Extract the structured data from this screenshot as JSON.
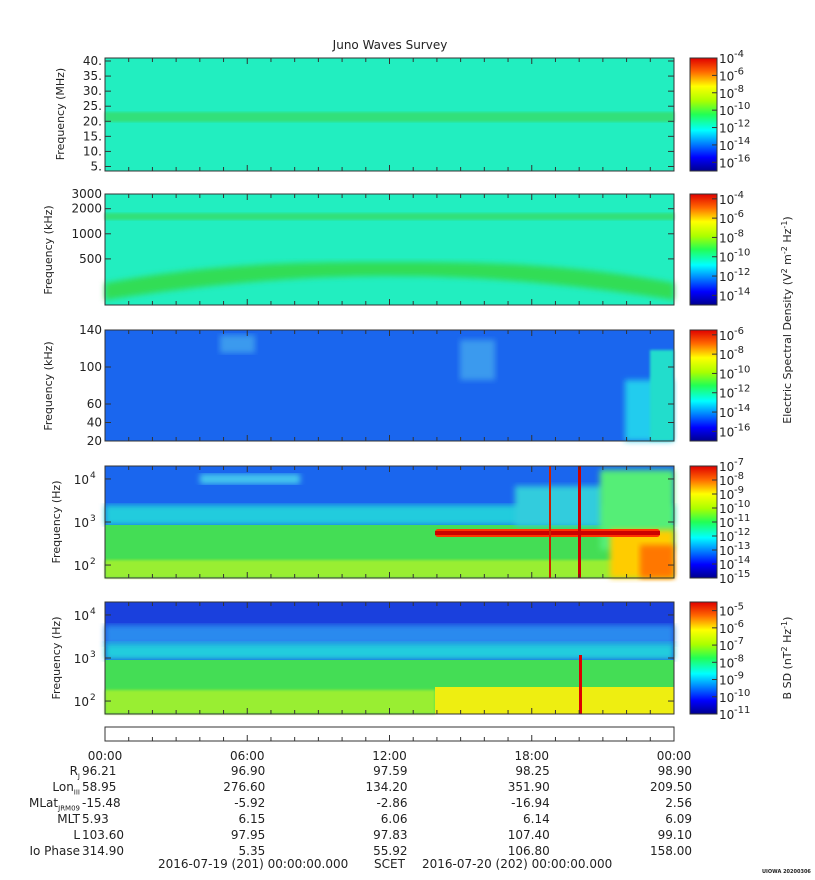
{
  "title": "Juno Waves Survey",
  "chart_data": [
    {
      "type": "heatmap",
      "panel": "HFR high",
      "ylabel": "Frequency (MHz)",
      "yscale": "linear",
      "ylim": [
        3.5,
        41
      ],
      "yticks": [
        40,
        35,
        30,
        25,
        20,
        15,
        10,
        5
      ],
      "ytick_labels": [
        "40.",
        "35.",
        "30.",
        "25.",
        "20.",
        "15.",
        "10.",
        "5."
      ],
      "colorbar": {
        "exponents": [
          -4,
          -6,
          -8,
          -10,
          -12,
          -14,
          -16
        ],
        "range": [
          -17,
          -4
        ]
      },
      "features": [
        {
          "name": "band",
          "y": 21,
          "level": -11
        },
        {
          "name": "background",
          "level": -13
        }
      ]
    },
    {
      "type": "heatmap",
      "panel": "HFR low",
      "ylabel": "Frequency (kHz)",
      "yscale": "log",
      "ylim": [
        140,
        3000
      ],
      "yticks": [
        3000,
        2000,
        1000,
        500
      ],
      "ytick_labels": [
        "3000",
        "2000",
        "1000",
        "500"
      ],
      "colorbar": {
        "exponents": [
          -4,
          -6,
          -8,
          -10,
          -12,
          -14
        ],
        "range": [
          -15,
          -3.5
        ]
      },
      "features": [
        {
          "name": "upper band",
          "y": 1600,
          "level": -11
        },
        {
          "name": "lower arc",
          "y_edges": 250,
          "y_center": 430,
          "level": -10.5
        },
        {
          "name": "background",
          "level": -12.5
        }
      ]
    },
    {
      "type": "heatmap",
      "panel": "LFR high",
      "ylabel": "Frequency (kHz)",
      "yscale": "linear",
      "ylim": [
        20,
        140
      ],
      "yticks": [
        140,
        100,
        60,
        40,
        20
      ],
      "ytick_labels": [
        "140",
        "100",
        "60",
        "40",
        "20"
      ],
      "colorbar": {
        "exponents": [
          -6,
          -8,
          -10,
          -12,
          -14,
          -16
        ],
        "range": [
          -17,
          -5.5
        ]
      },
      "features": [
        {
          "name": "background",
          "level": -14
        },
        {
          "name": "late emission",
          "x_start": "22:00",
          "level": -12
        }
      ]
    },
    {
      "type": "heatmap",
      "panel": "LFR E-field",
      "ylabel": "Frequency (Hz)",
      "yscale": "log",
      "ylim": [
        50,
        20000
      ],
      "yticks": [
        10000,
        1000,
        100
      ],
      "ytick_exponents": [
        "4",
        "3",
        "2"
      ],
      "colorbar": {
        "exponents": [
          -7,
          -8,
          -9,
          -10,
          -11,
          -12,
          -13,
          -14,
          -15
        ],
        "range": [
          -15,
          -7
        ]
      },
      "features": [
        {
          "name": "hiss",
          "y": 8000,
          "level": -13
        },
        {
          "name": "tone 600 Hz",
          "x_start": "14:00",
          "x_end": "23:30",
          "y": 600,
          "level": -7.5
        },
        {
          "name": "spike",
          "x": "20:00",
          "level": -8
        },
        {
          "name": "low-frequency rise",
          "x_start": "22:00",
          "level": -9
        }
      ]
    },
    {
      "type": "heatmap",
      "panel": "Magnetic",
      "ylabel": "Frequency (Hz)",
      "yscale": "log",
      "ylim": [
        50,
        20000
      ],
      "yticks": [
        10000,
        1000,
        100
      ],
      "ytick_exponents": [
        "4",
        "3",
        "2"
      ],
      "colorbar": {
        "exponents": [
          -5,
          -6,
          -7,
          -8,
          -9,
          -10,
          -11
        ],
        "range": [
          -11,
          -4.5
        ]
      },
      "features": [
        {
          "name": "background high",
          "y": 10000,
          "level": -11
        },
        {
          "name": "low band",
          "y": 100,
          "level": -8
        },
        {
          "name": "step",
          "x_start": "14:00",
          "level": -6.5
        },
        {
          "name": "spike",
          "x": "20:00",
          "level": -4.8
        }
      ]
    }
  ],
  "colorbar_labels": {
    "electric_main": "Electric Spectral Density (V",
    "electric_2": "2",
    "electric_m": " m",
    "electric_m2": "-2",
    "electric_hz": " Hz",
    "electric_hz1": "-1",
    "electric_close": ")",
    "magnetic_main": "B SD (nT",
    "magnetic_2": "2",
    "magnetic_hz": " Hz",
    "magnetic_hz1": "-1",
    "magnetic_close": ")"
  },
  "xaxis": {
    "ticks": [
      "00:00",
      "06:00",
      "12:00",
      "18:00",
      "00:00"
    ],
    "ticks_hours": [
      0,
      6,
      12,
      18,
      24
    ]
  },
  "ephemeris": {
    "rows": [
      {
        "label": "R",
        "sub": "J",
        "values": [
          "96.21",
          "96.90",
          "97.59",
          "98.25",
          "98.90"
        ]
      },
      {
        "label": "Lon",
        "sub": "III",
        "values": [
          "58.95",
          "276.60",
          "134.20",
          "351.90",
          "209.50"
        ]
      },
      {
        "label": "MLat",
        "sub": "JRM09",
        "values": [
          "-15.48",
          "-5.92",
          "-2.86",
          "-16.94",
          "2.56"
        ]
      },
      {
        "label": "MLT",
        "sub": "",
        "values": [
          "5.93",
          "6.15",
          "6.06",
          "6.14",
          "6.09"
        ]
      },
      {
        "label": "L",
        "sub": "",
        "values": [
          "103.60",
          "97.95",
          "97.83",
          "107.40",
          "99.10"
        ]
      },
      {
        "label": "Io Phase",
        "sub": "",
        "values": [
          "314.90",
          "5.35",
          "55.92",
          "106.80",
          "158.00"
        ]
      }
    ]
  },
  "footer": {
    "start": "2016-07-19 (201) 00:00:00.000",
    "scet": "SCET",
    "end": "2016-07-20 (202) 00:00:00.000",
    "stamp": "UIOWA 20200306"
  },
  "colors": {
    "ten_label": "10"
  }
}
